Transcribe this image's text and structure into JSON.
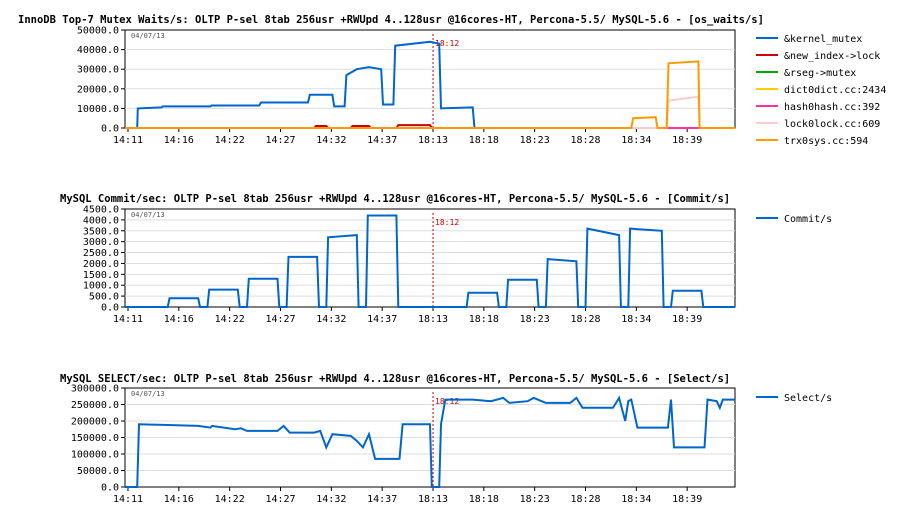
{
  "chart_data": [
    {
      "type": "line",
      "title": "InnoDB Top-7 Mutex Waits/s: OLTP P-sel 8tab 256usr +RWUpd 4..128usr @16cores-HT, Percona-5.5/ MySQL-5.6 - [os_waits/s]",
      "date_label": "04/07/13",
      "marker_label": "18:12",
      "ylim": [
        0,
        50000
      ],
      "yticks": [
        "0.0",
        "10000.0",
        "20000.0",
        "30000.0",
        "40000.0",
        "50000.0"
      ],
      "xticks": [
        "14:11",
        "14:16",
        "14:22",
        "14:27",
        "14:32",
        "14:37",
        "18:13",
        "18:18",
        "18:23",
        "18:28",
        "18:34",
        "18:39"
      ],
      "series": [
        {
          "name": "&kernel_mutex",
          "color": "#0066cc",
          "points": [
            [
              0,
              0
            ],
            [
              2,
              0
            ],
            [
              2.1,
              10000
            ],
            [
              6,
              10500
            ],
            [
              6.2,
              11000
            ],
            [
              14,
              11000
            ],
            [
              14.2,
              11500
            ],
            [
              22,
              11500
            ],
            [
              22.3,
              13000
            ],
            [
              30,
              13000
            ],
            [
              30.3,
              17000
            ],
            [
              34,
              17000
            ],
            [
              34.3,
              11000
            ],
            [
              36,
              11000
            ],
            [
              36.3,
              27000
            ],
            [
              38,
              30000
            ],
            [
              40,
              31000
            ],
            [
              42,
              30000
            ],
            [
              42.3,
              12000
            ],
            [
              44,
              12000
            ],
            [
              44.3,
              42000
            ],
            [
              50,
              44000
            ],
            [
              51.5,
              43000
            ],
            [
              51.8,
              10000
            ],
            [
              57,
              10500
            ],
            [
              57.3,
              0
            ],
            [
              100,
              0
            ]
          ]
        },
        {
          "name": "&new_index->lock",
          "color": "#cc0000",
          "points": [
            [
              0,
              0
            ],
            [
              31,
              0
            ],
            [
              31.3,
              1000
            ],
            [
              33,
              1000
            ],
            [
              33.3,
              0
            ],
            [
              37,
              0
            ],
            [
              37.3,
              1000
            ],
            [
              40,
              1000
            ],
            [
              40.3,
              0
            ],
            [
              44.5,
              0
            ],
            [
              44.8,
              1500
            ],
            [
              50,
              1500
            ],
            [
              50.3,
              0
            ],
            [
              100,
              0
            ]
          ]
        },
        {
          "name": "&rseg->mutex",
          "color": "#00aa00",
          "points": [
            [
              0,
              0
            ],
            [
              100,
              0
            ]
          ]
        },
        {
          "name": "dict0dict.cc:2434",
          "color": "#ffcc00",
          "points": [
            [
              0,
              0
            ],
            [
              100,
              0
            ]
          ]
        },
        {
          "name": "hash0hash.cc:392",
          "color": "#ff3399",
          "points": [
            [
              0,
              0
            ],
            [
              100,
              0
            ]
          ]
        },
        {
          "name": "lock0lock.cc:609",
          "color": "#ffcccc",
          "points": [
            [
              0,
              0
            ],
            [
              88.8,
              0
            ],
            [
              89.1,
              14000
            ],
            [
              94,
              16000
            ],
            [
              94.2,
              0
            ],
            [
              100,
              0
            ]
          ]
        },
        {
          "name": "trx0sys.cc:594",
          "color": "#ff9900",
          "points": [
            [
              0,
              0
            ],
            [
              83,
              0
            ],
            [
              83.3,
              5000
            ],
            [
              87,
              5500
            ],
            [
              87.3,
              0
            ],
            [
              88.8,
              0
            ],
            [
              89.1,
              33000
            ],
            [
              94,
              34000
            ],
            [
              94.2,
              0
            ],
            [
              100,
              0
            ]
          ]
        }
      ]
    },
    {
      "type": "line",
      "title": "MySQL Commit/sec: OLTP P-sel 8tab 256usr +RWUpd 4..128usr @16cores-HT, Percona-5.5/ MySQL-5.6 - [Commit/s]",
      "date_label": "04/07/13",
      "marker_label": "18:12",
      "ylim": [
        0,
        4500
      ],
      "yticks": [
        "0.0",
        "500.0",
        "1000.0",
        "1500.0",
        "2000.0",
        "2500.0",
        "3000.0",
        "3500.0",
        "4000.0",
        "4500.0"
      ],
      "xticks": [
        "14:11",
        "14:16",
        "14:22",
        "14:27",
        "14:32",
        "14:37",
        "18:13",
        "18:18",
        "18:23",
        "18:28",
        "18:34",
        "18:39"
      ],
      "series": [
        {
          "name": "Commit/s",
          "color": "#0066cc",
          "points": [
            [
              0,
              0
            ],
            [
              7,
              0
            ],
            [
              7.3,
              400
            ],
            [
              12,
              400
            ],
            [
              12.3,
              0
            ],
            [
              13.5,
              0
            ],
            [
              13.8,
              800
            ],
            [
              18.5,
              800
            ],
            [
              18.8,
              0
            ],
            [
              20,
              0
            ],
            [
              20.3,
              1300
            ],
            [
              25,
              1300
            ],
            [
              25.3,
              0
            ],
            [
              26.5,
              0
            ],
            [
              26.8,
              2300
            ],
            [
              31.5,
              2300
            ],
            [
              31.8,
              0
            ],
            [
              33,
              0
            ],
            [
              33.3,
              3200
            ],
            [
              38,
              3300
            ],
            [
              38.3,
              0
            ],
            [
              39.5,
              0
            ],
            [
              39.8,
              4200
            ],
            [
              44.5,
              4200
            ],
            [
              44.8,
              0
            ],
            [
              56,
              0
            ],
            [
              56.3,
              650
            ],
            [
              61,
              650
            ],
            [
              61.3,
              0
            ],
            [
              62.5,
              0
            ],
            [
              62.8,
              1250
            ],
            [
              67.5,
              1250
            ],
            [
              67.8,
              0
            ],
            [
              69,
              0
            ],
            [
              69.3,
              2200
            ],
            [
              74,
              2100
            ],
            [
              74.3,
              0
            ],
            [
              75.5,
              0
            ],
            [
              75.8,
              3600
            ],
            [
              81,
              3300
            ],
            [
              81.3,
              0
            ],
            [
              82.5,
              0
            ],
            [
              82.8,
              3600
            ],
            [
              88,
              3500
            ],
            [
              88.3,
              0
            ],
            [
              89.5,
              0
            ],
            [
              89.8,
              750
            ],
            [
              94.5,
              750
            ],
            [
              94.8,
              0
            ],
            [
              100,
              0
            ]
          ]
        }
      ]
    },
    {
      "type": "line",
      "title": "MySQL SELECT/sec: OLTP P-sel 8tab 256usr +RWUpd 4..128usr @16cores-HT, Percona-5.5/ MySQL-5.6 - [Select/s]",
      "date_label": "04/07/13",
      "marker_label": "18:12",
      "ylim": [
        0,
        300000
      ],
      "yticks": [
        "0.0",
        "50000.0",
        "100000.0",
        "150000.0",
        "200000.0",
        "250000.0",
        "300000.0"
      ],
      "xticks": [
        "14:11",
        "14:16",
        "14:22",
        "14:27",
        "14:32",
        "14:37",
        "18:13",
        "18:18",
        "18:23",
        "18:28",
        "18:34",
        "18:39"
      ],
      "series": [
        {
          "name": "Select/s",
          "color": "#0066cc",
          "points": [
            [
              0,
              0
            ],
            [
              2,
              0
            ],
            [
              2.3,
              190000
            ],
            [
              7,
              188000
            ],
            [
              12,
              185000
            ],
            [
              14,
              180000
            ],
            [
              14.3,
              185000
            ],
            [
              18,
              175000
            ],
            [
              19,
              178000
            ],
            [
              20,
              170000
            ],
            [
              25,
              170000
            ],
            [
              26,
              185000
            ],
            [
              27,
              165000
            ],
            [
              31,
              165000
            ],
            [
              32,
              170000
            ],
            [
              33,
              120000
            ],
            [
              34,
              160000
            ],
            [
              37,
              155000
            ],
            [
              38,
              140000
            ],
            [
              39,
              120000
            ],
            [
              40,
              160000
            ],
            [
              41,
              85000
            ],
            [
              45,
              85000
            ],
            [
              45.5,
              190000
            ],
            [
              50,
              190000
            ],
            [
              50.3,
              0
            ],
            [
              51.5,
              0
            ],
            [
              51.8,
              190000
            ],
            [
              52.5,
              265000
            ],
            [
              57,
              265000
            ],
            [
              60,
              260000
            ],
            [
              62,
              270000
            ],
            [
              63,
              255000
            ],
            [
              66,
              260000
            ],
            [
              67,
              270000
            ],
            [
              69,
              255000
            ],
            [
              73,
              255000
            ],
            [
              74,
              270000
            ],
            [
              75,
              240000
            ],
            [
              80,
              240000
            ],
            [
              81,
              270000
            ],
            [
              82,
              200000
            ],
            [
              82.5,
              260000
            ],
            [
              83,
              265000
            ],
            [
              84,
              180000
            ],
            [
              89,
              180000
            ],
            [
              89.5,
              265000
            ],
            [
              90,
              120000
            ],
            [
              95,
              120000
            ],
            [
              95.5,
              265000
            ],
            [
              97,
              260000
            ],
            [
              97.5,
              240000
            ],
            [
              98,
              265000
            ],
            [
              100,
              265000
            ]
          ]
        }
      ]
    }
  ]
}
